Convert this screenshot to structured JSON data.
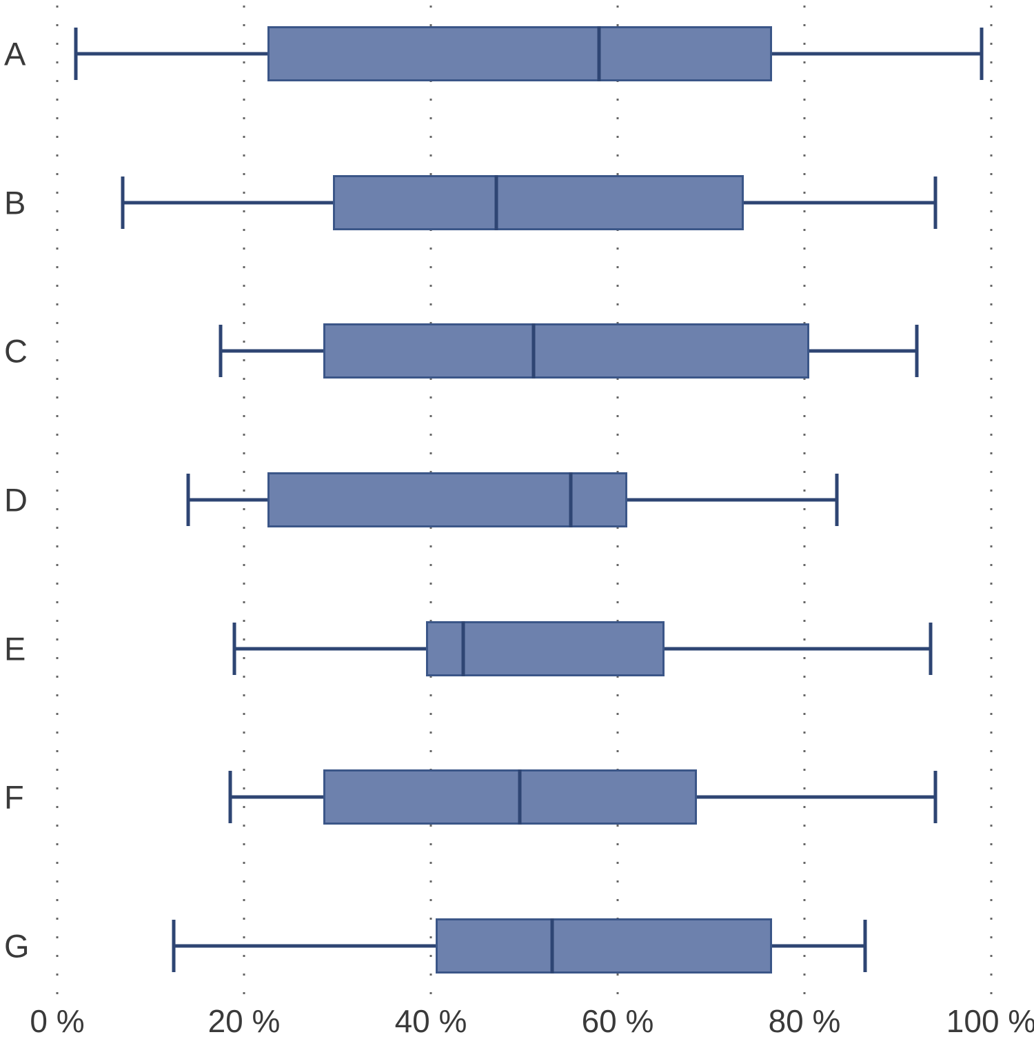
{
  "chart_data": {
    "type": "boxplot",
    "orientation": "horizontal",
    "title": "",
    "categories": [
      "A",
      "B",
      "C",
      "D",
      "E",
      "F",
      "G"
    ],
    "series": [
      {
        "label": "A",
        "whisker_min": 2,
        "q1": 22.5,
        "median": 58,
        "q3": 76.5,
        "whisker_max": 99
      },
      {
        "label": "B",
        "whisker_min": 7,
        "q1": 29.5,
        "median": 47,
        "q3": 73.5,
        "whisker_max": 94
      },
      {
        "label": "C",
        "whisker_min": 17.5,
        "q1": 28.5,
        "median": 51,
        "q3": 80.5,
        "whisker_max": 92
      },
      {
        "label": "D",
        "whisker_min": 14,
        "q1": 22.5,
        "median": 55,
        "q3": 61,
        "whisker_max": 83.5
      },
      {
        "label": "E",
        "whisker_min": 19,
        "q1": 39.5,
        "median": 43.5,
        "q3": 65,
        "whisker_max": 93.5
      },
      {
        "label": "F",
        "whisker_min": 18.5,
        "q1": 28.5,
        "median": 49.5,
        "q3": 68.5,
        "whisker_max": 94
      },
      {
        "label": "G",
        "whisker_min": 12.5,
        "q1": 40.5,
        "median": 53,
        "q3": 76.5,
        "whisker_max": 86.5
      }
    ],
    "x_axis": {
      "min": 0,
      "max": 100,
      "tick_values": [
        0,
        20,
        40,
        60,
        80,
        100
      ],
      "tick_labels": [
        "0 %",
        "20 %",
        "40 %",
        "60 %",
        "80 %",
        "100 %"
      ],
      "grid": "dotted-vertical"
    },
    "y_axis": {
      "labels_position": "left"
    },
    "legend": "none",
    "colors": {
      "box_fill": "#6d81ad",
      "box_border": "#3b5688",
      "whisker": "#2e4573",
      "median": "#2e4573",
      "grid": "#666666",
      "text": "#3a3a3a",
      "background": "#ffffff"
    }
  }
}
